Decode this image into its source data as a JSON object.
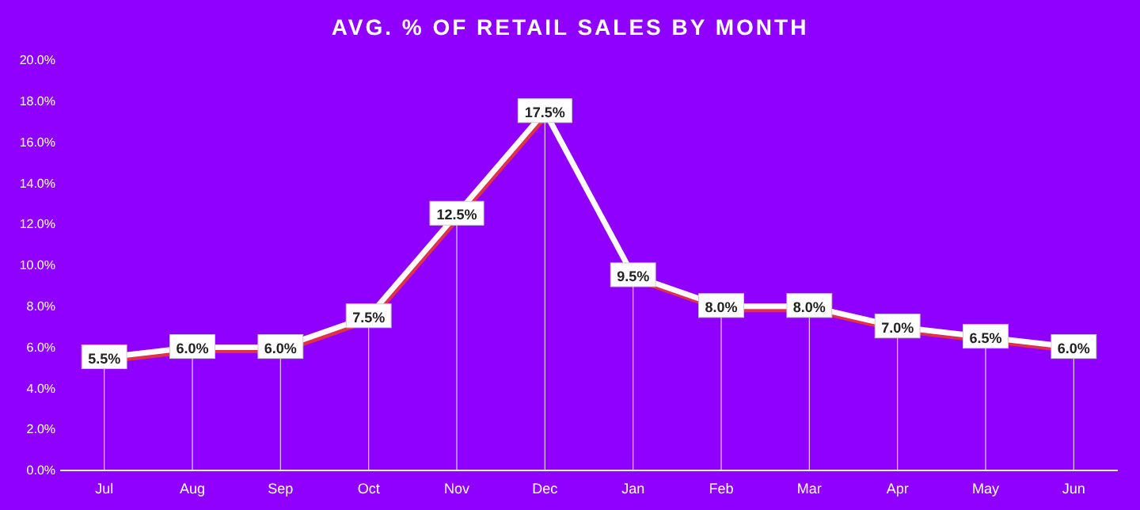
{
  "chart_data": {
    "type": "line",
    "title": "AVG. % OF RETAIL SALES BY MONTH",
    "categories": [
      "Jul",
      "Aug",
      "Sep",
      "Oct",
      "Nov",
      "Dec",
      "Jan",
      "Feb",
      "Mar",
      "Apr",
      "May",
      "Jun"
    ],
    "series": [
      {
        "color": "#ffffff",
        "values": [
          5.5,
          6.0,
          6.0,
          7.5,
          12.5,
          17.5,
          9.5,
          8.0,
          8.0,
          7.0,
          6.5,
          6.0
        ],
        "value_labels": [
          "5.5%",
          "6.0%",
          "6.0%",
          "7.5%",
          "12.5%",
          "17.5%",
          "9.5%",
          "8.0%",
          "8.0%",
          "7.0%",
          "6.5%",
          "6.0%"
        ]
      }
    ],
    "ylim": [
      0,
      20
    ],
    "yticks": [
      {
        "value": 0,
        "label": "0.0%"
      },
      {
        "value": 2,
        "label": "2.0%"
      },
      {
        "value": 4,
        "label": "4.0%"
      },
      {
        "value": 6,
        "label": "6.0%"
      },
      {
        "value": 8,
        "label": "8.0%"
      },
      {
        "value": 10,
        "label": "10.0%"
      },
      {
        "value": 12,
        "label": "12.0%"
      },
      {
        "value": 14,
        "label": "14.0%"
      },
      {
        "value": 16,
        "label": "16.0%"
      },
      {
        "value": 18,
        "label": "18.0%"
      },
      {
        "value": 20,
        "label": "20.0%"
      }
    ],
    "grid": "x",
    "marker": "square",
    "line_style": "solid"
  }
}
